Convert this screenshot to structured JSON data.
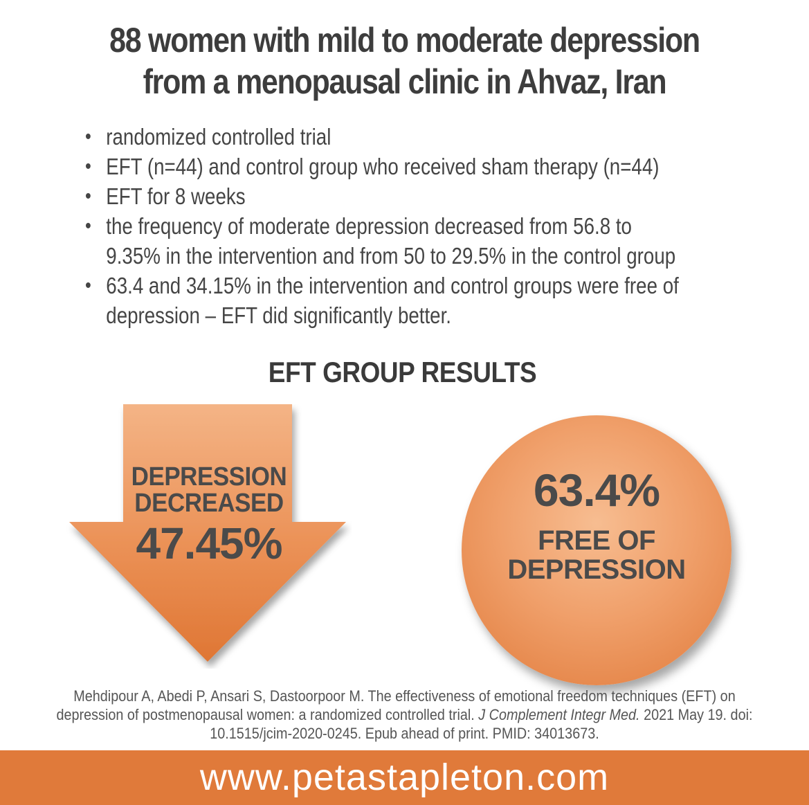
{
  "title": {
    "line1": "88 women with mild to moderate depression",
    "line2": "from a menopausal clinic in Ahvaz, Iran"
  },
  "bullets": [
    {
      "lines": [
        "randomized controlled trial"
      ]
    },
    {
      "lines": [
        "EFT (n=44) and control group who received sham therapy (n=44)"
      ]
    },
    {
      "lines": [
        "EFT for 8 weeks"
      ]
    },
    {
      "lines": [
        "the frequency of moderate depression decreased from 56.8 to",
        "9.35% in the intervention and from 50 to 29.5% in the control group"
      ]
    },
    {
      "lines": [
        "63.4 and 34.15% in the intervention and control groups were free of",
        "depression – EFT did significantly better."
      ]
    }
  ],
  "bullet_symbol": "•",
  "section_title": "EFT GROUP RESULTS",
  "arrow": {
    "label_line1": "DEPRESSION",
    "label_line2": "DECREASED",
    "value": "47.45%"
  },
  "circle": {
    "value": "63.4%",
    "label_line1": "FREE OF",
    "label_line2": "DEPRESSION"
  },
  "citation": {
    "line1": "Mehdipour A, Abedi P, Ansari S, Dastoorpoor M. The effectiveness of emotional freedom techniques (EFT) on",
    "line2_pre": "depression of postmenopausal women: a randomized controlled trial. ",
    "line2_journal": "J Complement Integr Med.",
    "line2_post": " 2021 May 19. doi:",
    "line3": "10.1515/jcim-2020-0245. Epub ahead of print. PMID: 34013673."
  },
  "footer": {
    "url": "www.petastapleton.com"
  },
  "colors": {
    "accent": "#e07a3a",
    "accent_light": "#f0a06b",
    "text": "#3f3f3f"
  }
}
